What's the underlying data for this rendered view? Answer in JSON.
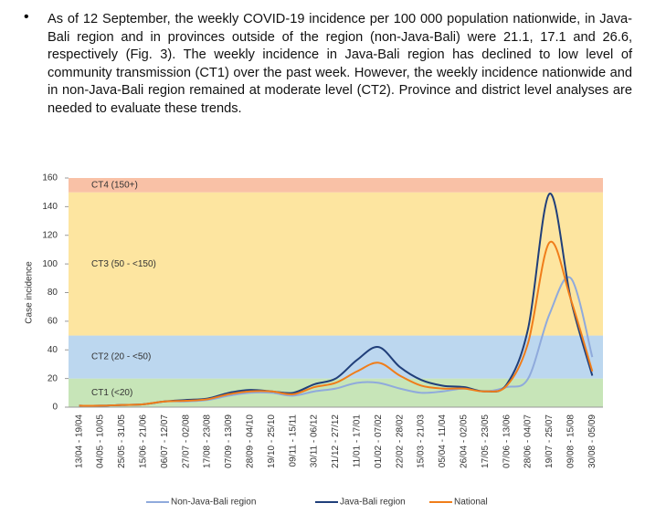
{
  "paragraph": "As of 12 September, the weekly COVID-19 incidence per 100 000 population nationwide, in Java-Bali region and in provinces outside of the region (non-Java-Bali) were 21.1, 17.1 and 26.6, respectively (Fig. 3). The weekly incidence in Java-Bali region has declined to low level of community transmission (CT1) over the past week. However, the weekly incidence nationwide and in non-Java-Bali region remained at moderate level (CT2). Province and district level analyses are needed to evaluate these trends.",
  "chart_data": {
    "type": "line",
    "y_label": "Case incidence",
    "categories": [
      "13/04 - 19/04",
      "04/05 - 10/05",
      "25/05 - 31/05",
      "15/06 - 21/06",
      "06/07 - 12/07",
      "27/07 - 02/08",
      "17/08 - 23/08",
      "07/09 - 13/09",
      "28/09 - 04/10",
      "19/10 - 25/10",
      "09/11 - 15/11",
      "30/11 - 06/12",
      "21/12 - 27/12",
      "11/01 - 17/01",
      "01/02 - 07/02",
      "22/02 - 28/02",
      "15/03 - 21/03",
      "05/04 - 11/04",
      "26/04 - 02/05",
      "17/05 - 23/05",
      "07/06 - 13/06",
      "28/06 - 04/07",
      "19/07 - 25/07",
      "09/08 - 15/08",
      "30/08 - 05/09"
    ],
    "series": [
      {
        "name": "Non-Java-Bali region",
        "color": "#8faadc",
        "values": [
          1,
          1,
          1.5,
          2,
          4,
          4,
          5,
          8,
          10,
          10,
          8,
          11,
          13,
          17,
          17,
          13,
          10,
          11,
          13,
          11,
          14,
          20,
          65,
          90,
          35
        ]
      },
      {
        "name": "Java-Bali region",
        "color": "#203f7a",
        "values": [
          1,
          1,
          1.5,
          2,
          4,
          5,
          6,
          10,
          12,
          11,
          10,
          16,
          20,
          33,
          42,
          28,
          19,
          15,
          14,
          11,
          16,
          55,
          149,
          75,
          22
        ]
      },
      {
        "name": "National",
        "color": "#f07d1a",
        "values": [
          1,
          1,
          1.5,
          2,
          4,
          4.5,
          5.5,
          9,
          11,
          11,
          9,
          14,
          17,
          25,
          31,
          22,
          15,
          13,
          13,
          11,
          15,
          45,
          115,
          75,
          25
        ]
      }
    ],
    "bands": [
      {
        "label": "CT1 (<20)",
        "from": 0,
        "to": 20,
        "color": "#c7e5b8"
      },
      {
        "label": "CT2 (20 - <50)",
        "from": 20,
        "to": 50,
        "color": "#bcd7ef"
      },
      {
        "label": "CT3 (50 - <150)",
        "from": 50,
        "to": 150,
        "color": "#fde5a0"
      },
      {
        "label": "CT4 (150+)",
        "from": 150,
        "to": 160,
        "color": "#f9c1a6"
      }
    ],
    "ylim": [
      0,
      160
    ],
    "yticks": [
      0,
      20,
      40,
      60,
      80,
      100,
      120,
      140,
      160
    ]
  }
}
